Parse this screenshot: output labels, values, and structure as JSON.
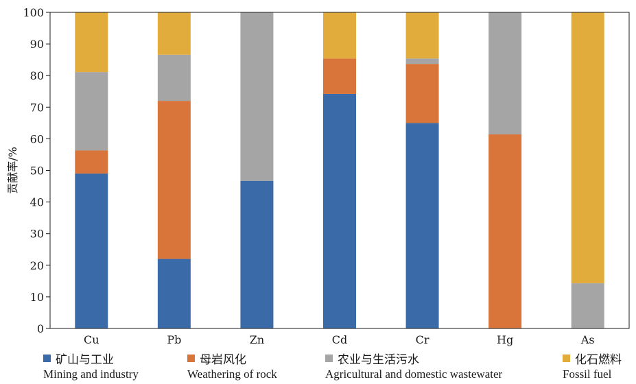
{
  "chart_data": {
    "type": "bar",
    "stacked": true,
    "categories": [
      "Cu",
      "Pb",
      "Zn",
      "Cd",
      "Cr",
      "Hg",
      "As"
    ],
    "ylabel": "贡献率/%",
    "ylim": [
      0,
      100
    ],
    "yticks": [
      0,
      10,
      20,
      30,
      40,
      50,
      60,
      70,
      80,
      90,
      100
    ],
    "grid": false,
    "legend_position": "bottom",
    "series": [
      {
        "key": "mining",
        "name": "矿山与工业",
        "name_en": "Mining and industry",
        "color": "#3b6aa8",
        "values": [
          49,
          22,
          46.7,
          74.2,
          65,
          0,
          0
        ]
      },
      {
        "key": "weathering",
        "name": "母岩风化",
        "name_en": "Weathering of rock",
        "color": "#d9753a",
        "values": [
          7.3,
          50,
          0,
          11.2,
          18.7,
          61.4,
          0
        ]
      },
      {
        "key": "agri",
        "name": "农业与生活污水",
        "name_en": "Agricultural and domestic wastewater",
        "color": "#a5a5a5",
        "values": [
          24.8,
          14.6,
          53.3,
          0,
          1.7,
          38.6,
          14.3
        ]
      },
      {
        "key": "fossil",
        "name": "化石燃料",
        "name_en": "Fossil fuel",
        "color": "#e2ac3c",
        "values": [
          18.9,
          13.4,
          0,
          14.6,
          14.6,
          0,
          85.7
        ]
      }
    ]
  }
}
